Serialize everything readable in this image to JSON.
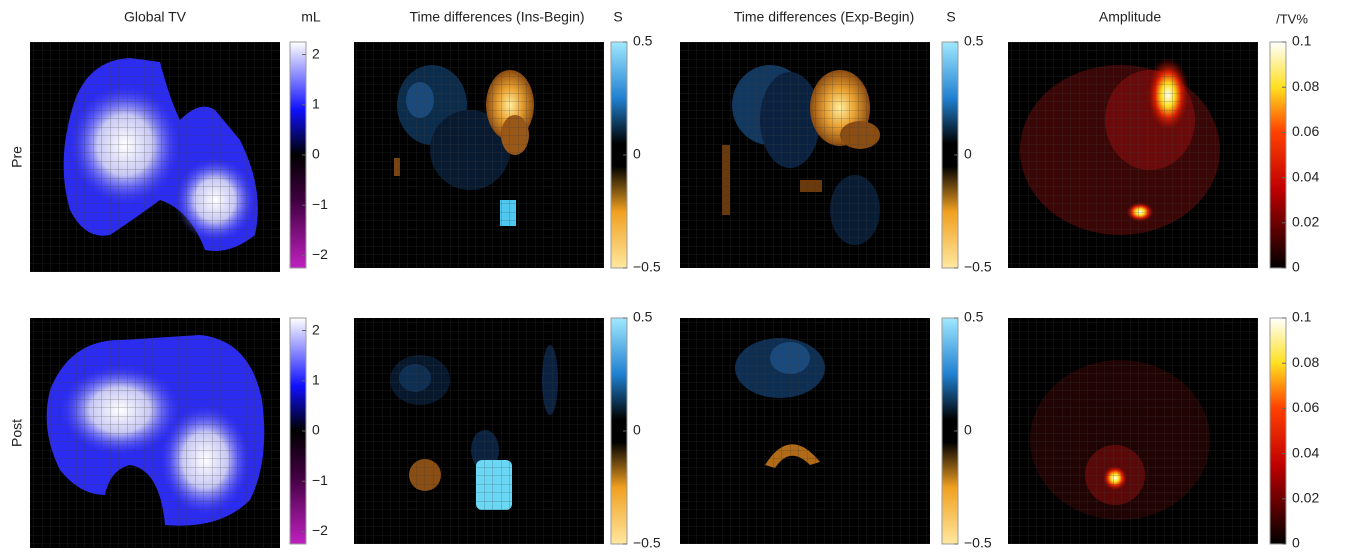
{
  "rows": [
    "Pre",
    "Post"
  ],
  "columns": [
    {
      "title": "Global TV",
      "colorbar": {
        "unit": "mL",
        "lim": [
          -2.25,
          2.25
        ],
        "ticks": [
          2,
          1,
          0,
          {
            "value": -1,
            "label": "−1"
          },
          {
            "value": -2,
            "label": "−2"
          }
        ]
      }
    },
    {
      "title": "Time differences (Ins-Begin)",
      "colorbar": {
        "unit": "S",
        "lim": [
          -0.5,
          0.5
        ],
        "ticks": [
          0.5,
          0,
          {
            "value": -0.5,
            "label": "−0.5"
          }
        ]
      }
    },
    {
      "title": "Time differences (Exp-Begin)",
      "colorbar": {
        "unit": "S",
        "lim": [
          -0.5,
          0.5
        ],
        "ticks": [
          0.5,
          0,
          {
            "value": -0.5,
            "label": "−0.5"
          }
        ]
      }
    },
    {
      "title": "Amplitude",
      "colorbar": {
        "unit": "/TV%",
        "lim": [
          0,
          0.1
        ],
        "ticks": [
          0.1,
          0.08,
          0.06,
          0.04,
          0.02,
          0
        ]
      }
    }
  ]
}
